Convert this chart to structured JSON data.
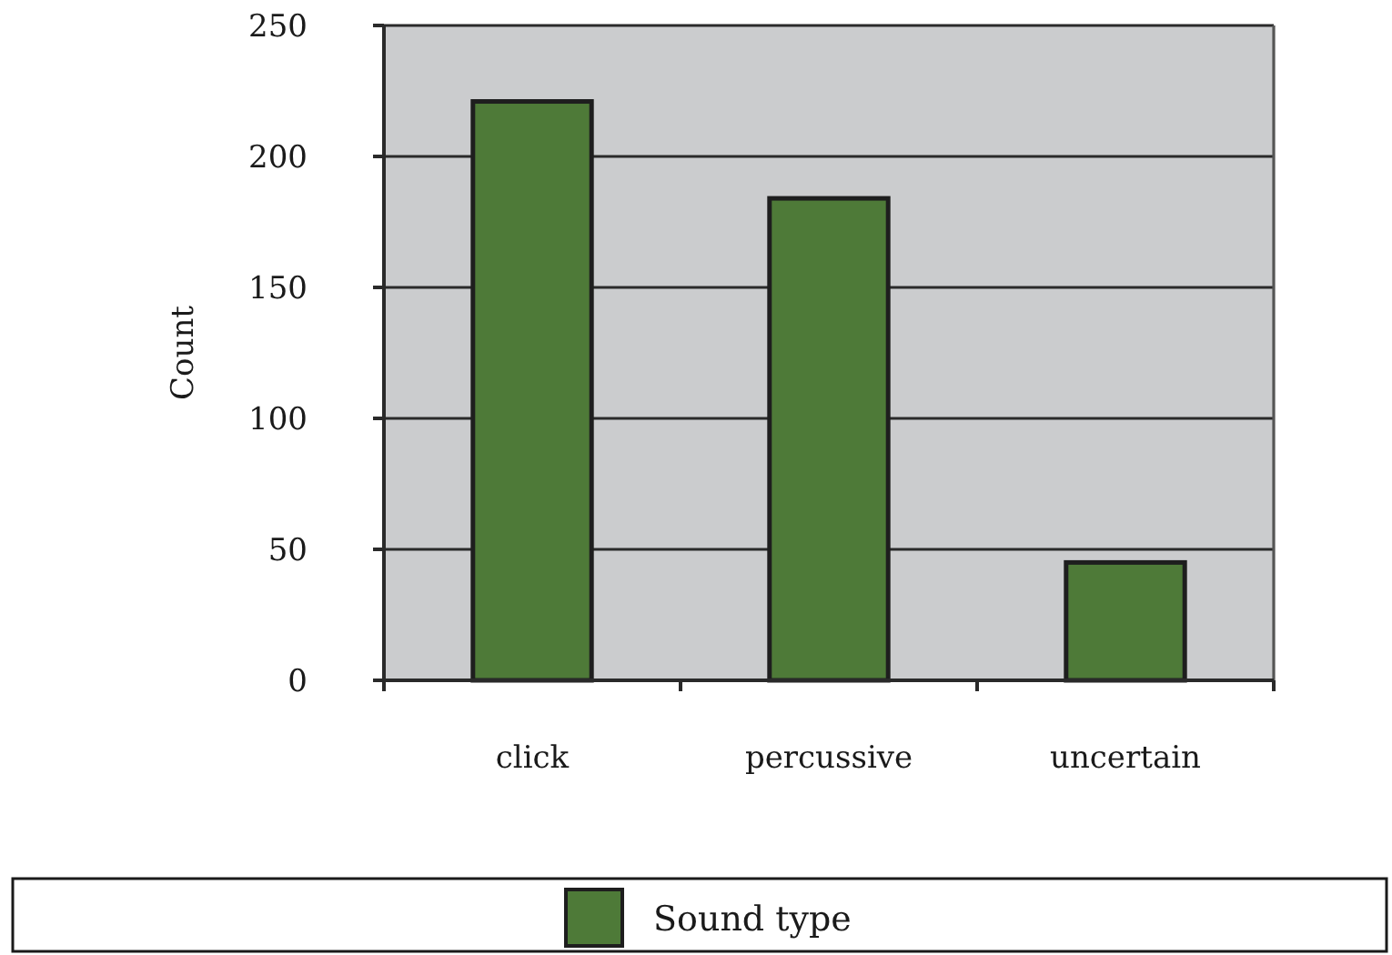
{
  "chart_data": {
    "type": "bar",
    "ylabel": "Count",
    "categories": [
      "click",
      "percussive",
      "uncertain"
    ],
    "series": [
      {
        "name": "Sound type",
        "color": "#4e7a38",
        "values": [
          221,
          184,
          45
        ]
      }
    ],
    "ylim": [
      0,
      250
    ],
    "yticks": [
      0,
      50,
      100,
      150,
      200,
      250
    ],
    "grid": "y",
    "legend": "bottom"
  }
}
